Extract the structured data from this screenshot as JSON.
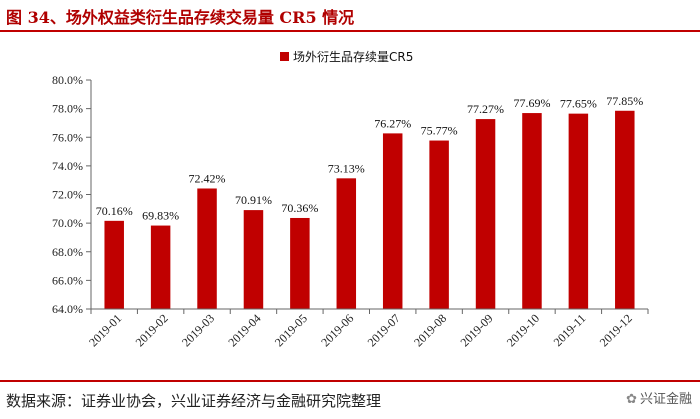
{
  "title": "图 34、场外权益类衍生品存续交易量 CR5 情况",
  "footer": {
    "source": "数据来源：证券业协会，兴业证券经济与金融研究院整理",
    "watermark": "兴证金融",
    "watermark_icon": "wechat-icon"
  },
  "colors": {
    "bar": "#c00000",
    "accent": "#b00000"
  },
  "chart_data": {
    "type": "bar",
    "title": "",
    "xlabel": "",
    "ylabel": "",
    "ylim": [
      64,
      80
    ],
    "yticks": [
      "64.0%",
      "66.0%",
      "68.0%",
      "70.0%",
      "72.0%",
      "74.0%",
      "76.0%",
      "78.0%",
      "80.0%"
    ],
    "categories": [
      "2019-01",
      "2019-02",
      "2019-03",
      "2019-04",
      "2019-05",
      "2019-06",
      "2019-07",
      "2019-08",
      "2019-09",
      "2019-10",
      "2019-11",
      "2019-12"
    ],
    "series": [
      {
        "name": "场外衍生品存续量CR5",
        "values": [
          70.16,
          69.83,
          72.42,
          70.91,
          70.36,
          73.13,
          76.27,
          75.77,
          77.27,
          77.69,
          77.65,
          77.85
        ],
        "labels": [
          "70.16%",
          "69.83%",
          "72.42%",
          "70.91%",
          "70.36%",
          "73.13%",
          "76.27%",
          "75.77%",
          "77.27%",
          "77.69%",
          "77.65%",
          "77.85%"
        ]
      }
    ],
    "legend": "top-center",
    "grid": false
  }
}
